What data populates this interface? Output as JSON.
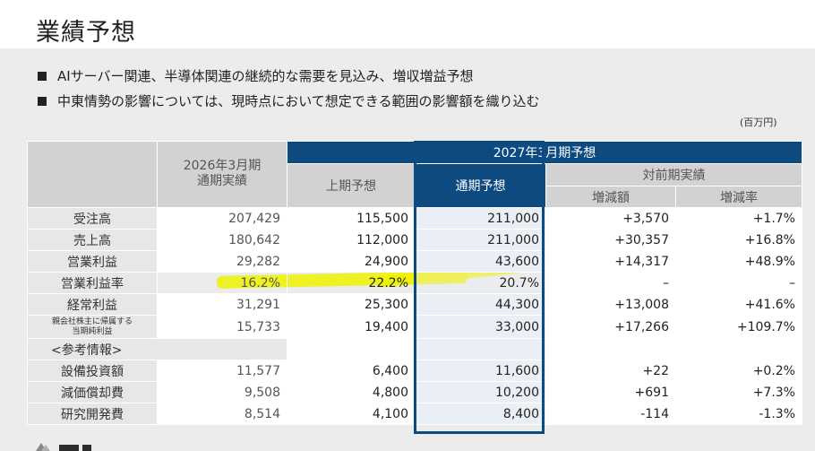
{
  "page": {
    "title": "業績予想",
    "bullets": [
      "AIサーバー関連、半導体関連の継続的な需要を見込み、増収増益予想",
      "中東情勢の影響については、現時点において想定できる範囲の影響額を織り込む"
    ],
    "unit": "(百万円)"
  },
  "table": {
    "headers": {
      "prev_year": [
        "2026年3月期",
        "通期実績"
      ],
      "forecast_group": "2027年3月期予想",
      "h1": "上期予想",
      "full": "通期予想",
      "yoy_group": "対前期実績",
      "diff": "増減額",
      "rate": "増減率"
    },
    "rows": [
      {
        "label": "受注高",
        "prev": "207,429",
        "h1": "115,500",
        "full": "211,000",
        "diff": "+3,570",
        "rate": "+1.7%"
      },
      {
        "label": "売上高",
        "prev": "180,642",
        "h1": "112,000",
        "full": "211,000",
        "diff": "+30,357",
        "rate": "+16.8%"
      },
      {
        "label": "営業利益",
        "prev": "29,282",
        "h1": "24,900",
        "full": "43,600",
        "diff": "+14,317",
        "rate": "+48.9%"
      },
      {
        "label": "営業利益率",
        "prev": "16.2%",
        "h1": "22.2%",
        "full": "20.7%",
        "diff": "–",
        "rate": "–"
      },
      {
        "label": "経常利益",
        "prev": "31,291",
        "h1": "25,300",
        "full": "44,300",
        "diff": "+13,008",
        "rate": "+41.6%"
      },
      {
        "label_lines": [
          "親会社株主に帰属する",
          "当期純利益"
        ],
        "prev": "15,733",
        "h1": "19,400",
        "full": "33,000",
        "diff": "+17,266",
        "rate": "+109.7%"
      }
    ],
    "reference_label": "<参考情報>",
    "ref_rows": [
      {
        "label": "設備投資額",
        "prev": "11,577",
        "h1": "6,400",
        "full": "11,600",
        "diff": "+22",
        "rate": "+0.2%"
      },
      {
        "label": "減価償却費",
        "prev": "9,508",
        "h1": "4,800",
        "full": "10,200",
        "diff": "+691",
        "rate": "+7.3%"
      },
      {
        "label": "研究開発費",
        "prev": "8,514",
        "h1": "4,100",
        "full": "8,400",
        "diff": "-114",
        "rate": "-1.3%"
      }
    ]
  },
  "colors": {
    "accent_blue": "#0d4a80",
    "highlight": "#eef200"
  }
}
